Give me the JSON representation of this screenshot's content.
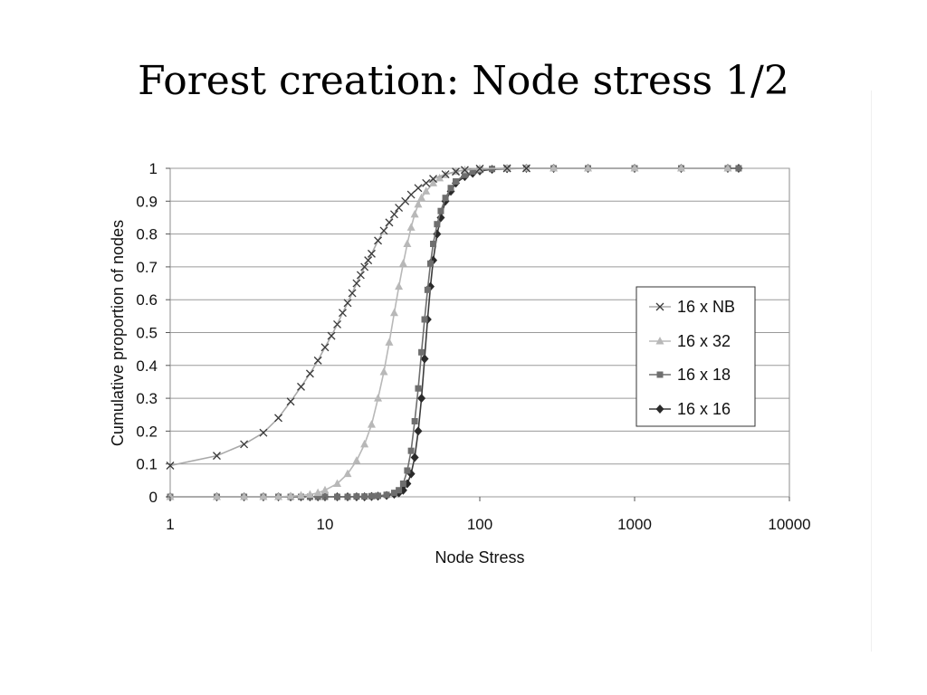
{
  "slide": {
    "title": "Forest creation: Node stress 1/2"
  },
  "chart_data": {
    "type": "line",
    "title": "",
    "xlabel": "Node Stress",
    "ylabel": "Cumulative proportion of nodes",
    "xscale": "log",
    "xlim": [
      1,
      10000
    ],
    "ylim": [
      0,
      1
    ],
    "x_ticks": [
      "1",
      "10",
      "100",
      "1000",
      "10000"
    ],
    "y_ticks": [
      "0",
      "0.1",
      "0.2",
      "0.3",
      "0.4",
      "0.5",
      "0.6",
      "0.7",
      "0.8",
      "0.9",
      "1"
    ],
    "grid": "horizontal",
    "legend_position": "right",
    "series": [
      {
        "name": "16 x NB",
        "color": "#a9a9a9",
        "marker": "x",
        "marker_color": "#3a3a3a",
        "x": [
          1,
          2,
          3,
          4,
          5,
          6,
          7,
          8,
          9,
          10,
          11,
          12,
          13,
          14,
          15,
          16,
          17,
          18,
          19,
          20,
          22,
          24,
          26,
          28,
          30,
          33,
          36,
          40,
          45,
          50,
          60,
          70,
          80,
          100,
          150,
          200
        ],
        "y": [
          0.095,
          0.125,
          0.16,
          0.195,
          0.24,
          0.29,
          0.335,
          0.375,
          0.415,
          0.455,
          0.49,
          0.525,
          0.56,
          0.59,
          0.62,
          0.65,
          0.675,
          0.7,
          0.72,
          0.74,
          0.78,
          0.81,
          0.835,
          0.86,
          0.88,
          0.9,
          0.92,
          0.94,
          0.955,
          0.968,
          0.982,
          0.99,
          0.995,
          0.999,
          1.0,
          1.0
        ]
      },
      {
        "name": "16 x 32",
        "color": "#b8b8b8",
        "marker": "triangle",
        "marker_color": "#b8b8b8",
        "x": [
          1,
          2,
          3,
          4,
          5,
          6,
          7,
          8,
          9,
          10,
          12,
          14,
          16,
          18,
          20,
          22,
          24,
          26,
          28,
          30,
          32,
          34,
          36,
          38,
          40,
          42,
          45,
          50,
          55,
          60,
          70,
          80,
          100,
          150,
          200,
          300,
          500,
          1000,
          2000,
          4000
        ],
        "y": [
          0,
          0,
          0,
          0,
          0,
          0.002,
          0.004,
          0.007,
          0.012,
          0.02,
          0.04,
          0.07,
          0.11,
          0.16,
          0.22,
          0.3,
          0.38,
          0.47,
          0.56,
          0.64,
          0.71,
          0.77,
          0.82,
          0.86,
          0.89,
          0.91,
          0.93,
          0.955,
          0.97,
          0.98,
          0.99,
          0.995,
          0.999,
          1.0,
          1.0,
          1.0,
          1.0,
          1.0,
          1.0,
          1.0
        ]
      },
      {
        "name": "16 x 18",
        "color": "#6e6e6e",
        "marker": "square",
        "marker_color": "#6e6e6e",
        "x": [
          1,
          2,
          3,
          4,
          5,
          6,
          7,
          8,
          9,
          10,
          12,
          14,
          16,
          18,
          20,
          22,
          25,
          28,
          30,
          32,
          34,
          36,
          38,
          40,
          42,
          44,
          46,
          48,
          50,
          53,
          56,
          60,
          65,
          70,
          80,
          90,
          100,
          120,
          150,
          200,
          300,
          500,
          1000,
          2000,
          4000,
          4700
        ],
        "y": [
          0,
          0,
          0,
          0,
          0,
          0,
          0,
          0,
          0,
          0,
          0,
          0,
          0.001,
          0.001,
          0.002,
          0.003,
          0.006,
          0.012,
          0.02,
          0.04,
          0.08,
          0.14,
          0.23,
          0.33,
          0.44,
          0.54,
          0.63,
          0.71,
          0.77,
          0.83,
          0.87,
          0.91,
          0.94,
          0.96,
          0.98,
          0.99,
          0.995,
          0.998,
          1.0,
          1.0,
          1.0,
          1.0,
          1.0,
          1.0,
          1.0,
          1.0
        ]
      },
      {
        "name": "16 x 16",
        "color": "#3c3c3c",
        "marker": "diamond",
        "marker_color": "#2a2a2a",
        "x": [
          1,
          2,
          3,
          4,
          5,
          6,
          7,
          8,
          9,
          10,
          12,
          14,
          16,
          18,
          20,
          22,
          25,
          28,
          30,
          32,
          34,
          36,
          38,
          40,
          42,
          44,
          46,
          48,
          50,
          53,
          56,
          60,
          65,
          70,
          80,
          90,
          100,
          120,
          150,
          200,
          300,
          500,
          1000,
          2000,
          4000,
          4700
        ],
        "y": [
          0,
          0,
          0,
          0,
          0,
          0,
          0,
          0,
          0,
          0,
          0,
          0,
          0,
          0,
          0.001,
          0.002,
          0.004,
          0.008,
          0.012,
          0.02,
          0.04,
          0.07,
          0.12,
          0.2,
          0.3,
          0.42,
          0.54,
          0.64,
          0.72,
          0.8,
          0.85,
          0.9,
          0.93,
          0.955,
          0.975,
          0.985,
          0.992,
          0.997,
          0.999,
          1.0,
          1.0,
          1.0,
          1.0,
          1.0,
          1.0,
          1.0
        ]
      }
    ]
  }
}
